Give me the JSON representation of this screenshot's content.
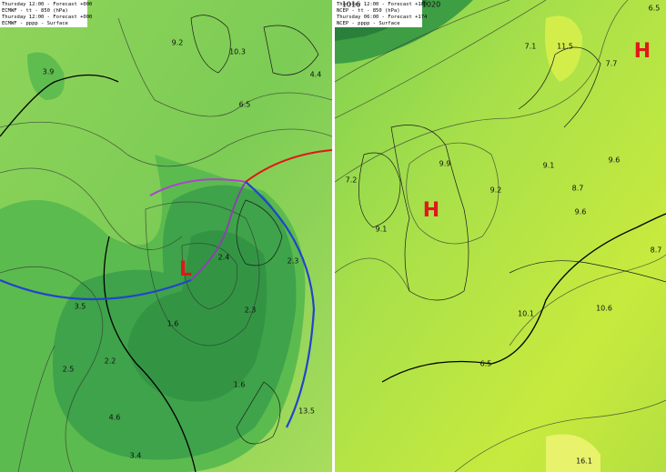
{
  "panels": [
    {
      "header": [
        "Thursday 12:00 - Forecast +000",
        "ECMWF - tt - 850 (hPa)",
        "Thursday 12:00 - Forecast +000",
        "ECMWF - pppp - Surface"
      ],
      "labels": [
        "9.2",
        "10.3",
        "3.9",
        "4.4",
        "6.5",
        "2.4",
        "2.3",
        "L",
        "3.5",
        "1.6",
        "2.3",
        "2.5",
        "2.2",
        "4.6",
        "1.6",
        "3.4",
        "13.5"
      ]
    },
    {
      "header": [
        "Thursday 12:00 - Forecast +180",
        "NCEP - tt - 850 (hPa)",
        "Thursday 06:00 - Forecast +174",
        "NCEP - pppp - Surface"
      ],
      "labels": [
        "1016",
        "1020",
        "6.5",
        "7.1",
        "11.5",
        "7.7",
        "H",
        "9.9",
        "9.1",
        "9.6",
        "7.2",
        "H",
        "9.2",
        "8.7",
        "9.6",
        "9.1",
        "8.7",
        "10.1",
        "10.6",
        "6.5",
        "16.1"
      ]
    }
  ]
}
